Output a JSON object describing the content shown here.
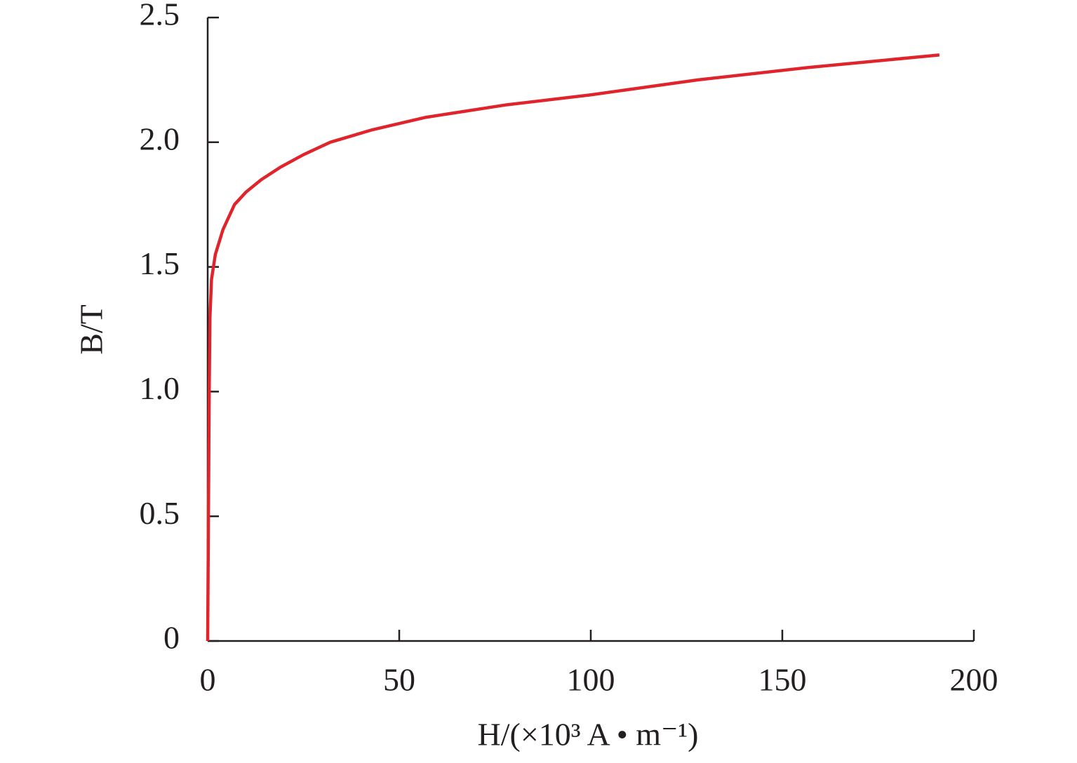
{
  "chart_data": {
    "type": "line",
    "x_label": "H/(×10³ A • m⁻¹)",
    "y_label": "B/T",
    "xlim": [
      0,
      200
    ],
    "ylim": [
      0,
      2.5
    ],
    "xticks": [
      0,
      50,
      100,
      150,
      200
    ],
    "yticks": [
      0,
      0.5,
      {
        "value": 1,
        "label": "1.0"
      },
      1.5,
      {
        "value": 2,
        "label": "2.0"
      },
      2.5
    ],
    "grid": false,
    "series": [
      {
        "color": "#e0242b",
        "x": [
          0,
          0.2,
          0.4,
          0.6,
          1,
          2,
          4,
          7,
          10,
          14,
          19,
          25,
          32,
          43,
          57,
          78,
          100,
          128,
          157,
          191
        ],
        "values": [
          0,
          0.5,
          1.0,
          1.3,
          1.45,
          1.55,
          1.65,
          1.75,
          1.8,
          1.85,
          1.9,
          1.95,
          2.0,
          2.05,
          2.1,
          2.15,
          2.19,
          2.25,
          2.3,
          2.35
        ]
      }
    ]
  }
}
